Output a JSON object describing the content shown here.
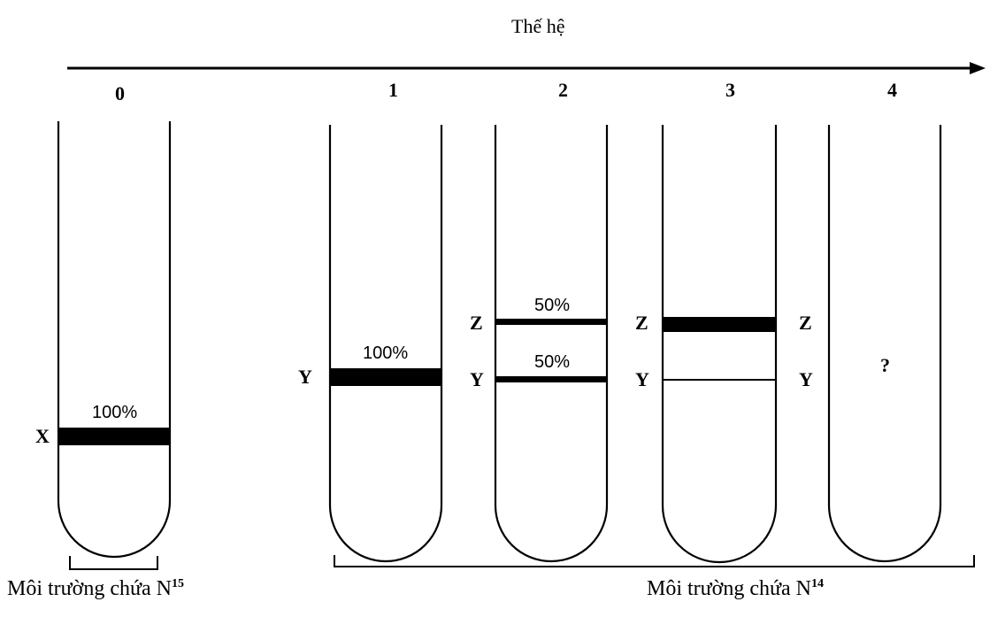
{
  "title": "Thế hệ",
  "generations": [
    "0",
    "1",
    "2",
    "3",
    "4"
  ],
  "band_labels": {
    "x": "X",
    "y": "Y",
    "z": "Z"
  },
  "tubes": [
    {
      "generation": "0",
      "bands": [
        {
          "label": "X",
          "percent_text": "100%",
          "weight": "thick"
        }
      ]
    },
    {
      "generation": "1",
      "bands": [
        {
          "label": "Y",
          "percent_text": "100%",
          "weight": "thick"
        }
      ]
    },
    {
      "generation": "2",
      "bands": [
        {
          "label": "Z",
          "percent_text": "50%",
          "weight": "medium"
        },
        {
          "label": "Y",
          "percent_text": "50%",
          "weight": "medium"
        }
      ]
    },
    {
      "generation": "3",
      "bands": [
        {
          "label": "Z",
          "weight": "thick"
        },
        {
          "label": "Y",
          "weight": "thin"
        }
      ]
    },
    {
      "generation": "4",
      "unknown": "?"
    }
  ],
  "environment": {
    "n15": {
      "text": "Môi trường chứa N",
      "superscript": "15"
    },
    "n14": {
      "text": "Môi trường chứa N",
      "superscript": "14"
    }
  }
}
